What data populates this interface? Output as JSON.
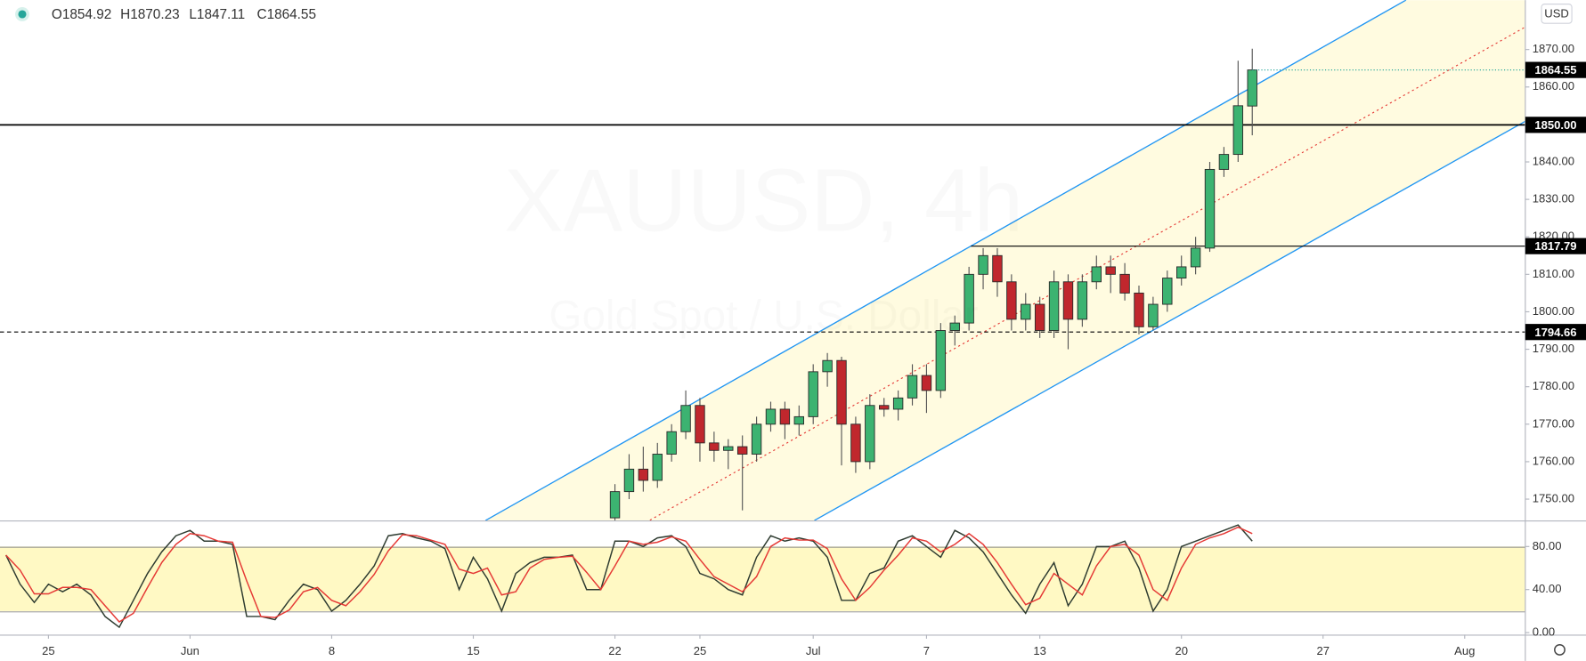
{
  "chart_data": [
    {
      "type": "candlestick",
      "title": "XAUUSD, 4h",
      "subtitle": "Gold Spot / U.S. Dollar",
      "currency": "USD",
      "ohlc_labels": [
        "O1854.92",
        "H1870.23",
        "L1847.11",
        "C1864.55"
      ],
      "x": [
        20.0,
        20.5,
        21.0,
        21.5,
        22.0,
        22.5,
        23.0,
        23.5,
        24.0,
        24.5,
        25.0,
        25.5,
        26.0,
        26.5,
        27.0,
        27.5,
        28.0,
        28.5,
        29.0,
        29.5,
        30.0,
        30.5,
        31.0,
        31.5,
        32.0,
        32.5,
        33.0,
        33.5,
        34.0,
        34.5,
        35.0,
        35.5,
        36.0,
        36.5,
        37.0,
        37.5,
        38.0,
        38.5,
        39.0,
        39.5,
        40.0,
        40.5,
        41.0,
        41.5,
        42.0,
        42.5
      ],
      "open": [
        1745,
        1752,
        1758,
        1755,
        1762,
        1768,
        1775,
        1765,
        1763,
        1764,
        1762,
        1770,
        1774,
        1770,
        1772,
        1784,
        1787,
        1770,
        1760,
        1775,
        1774,
        1777,
        1783,
        1779,
        1795,
        1797,
        1810,
        1815,
        1808,
        1798,
        1802,
        1795,
        1808,
        1798,
        1808,
        1812,
        1810,
        1805,
        1796,
        1802,
        1809,
        1812,
        1817,
        1838,
        1842,
        1854.92
      ],
      "high": [
        1754,
        1762,
        1764,
        1765,
        1770,
        1779,
        1777,
        1768,
        1766,
        1767,
        1772,
        1776,
        1776,
        1775,
        1786,
        1789,
        1788,
        1772,
        1778,
        1777,
        1779,
        1786,
        1786,
        1797,
        1799,
        1812,
        1817,
        1817,
        1810,
        1805,
        1804,
        1811,
        1810,
        1810,
        1815,
        1815,
        1813,
        1807,
        1804,
        1811,
        1815,
        1820,
        1840,
        1844,
        1867,
        1870.23
      ],
      "low": [
        1743,
        1750,
        1752,
        1753,
        1760,
        1766,
        1760,
        1760,
        1758,
        1747,
        1760,
        1768,
        1766,
        1767,
        1770,
        1780,
        1759,
        1757,
        1758,
        1772,
        1771,
        1775,
        1773,
        1777,
        1791,
        1795,
        1806,
        1804,
        1795,
        1795,
        1793,
        1793,
        1790,
        1796,
        1806,
        1805,
        1803,
        1794,
        1795,
        1800,
        1807,
        1810,
        1816,
        1836,
        1840,
        1847.11
      ],
      "close": [
        1752,
        1758,
        1755,
        1762,
        1768,
        1775,
        1765,
        1763,
        1764,
        1762,
        1770,
        1774,
        1770,
        1772,
        1784,
        1787,
        1770,
        1760,
        1775,
        1774,
        1777,
        1783,
        1779,
        1795,
        1797,
        1810,
        1815,
        1808,
        1798,
        1802,
        1795,
        1808,
        1798,
        1808,
        1812,
        1810,
        1805,
        1796,
        1802,
        1809,
        1812,
        1817,
        1838,
        1842,
        1855,
        1864.55
      ],
      "up_color": "#3cb371",
      "down_color": "#c0272d",
      "xlim": [
        -1.71,
        52.14
      ],
      "ylim": [
        1744.3,
        1883.2
      ],
      "yticks": [
        {
          "value": 1750,
          "label": "1750.00"
        },
        {
          "value": 1760,
          "label": "1760.00"
        },
        {
          "value": 1770,
          "label": "1770.00"
        },
        {
          "value": 1780,
          "label": "1780.00"
        },
        {
          "value": 1790,
          "label": "1790.00"
        },
        {
          "value": 1800,
          "label": "1800.00"
        },
        {
          "value": 1810,
          "label": "1810.00"
        },
        {
          "value": 1820,
          "label": "1820.00"
        },
        {
          "value": 1830,
          "label": "1830.00"
        },
        {
          "value": 1840,
          "label": "1840.00"
        },
        {
          "value": 1850,
          "label": "1850.00"
        },
        {
          "value": 1860,
          "label": "1860.00"
        },
        {
          "value": 1870,
          "label": "1870.00"
        }
      ],
      "levels": [
        {
          "value": 1850,
          "label": "1850.00",
          "style": "solid"
        },
        {
          "value": 1817.79,
          "label": "1817.79",
          "style": "solid",
          "from": 32.57
        },
        {
          "value": 1794.66,
          "label": "1794.66",
          "style": "dashed"
        }
      ],
      "last_price": {
        "value": 1864.55,
        "label": "1864.55"
      },
      "channel": {
        "color": "#2196f3",
        "fill": "#fffbe0",
        "mid_color": "#e53935",
        "upper": [
          [
            15.43,
            1744.3
          ],
          [
            47.93,
            1883.2
          ]
        ],
        "lower": [
          [
            27.04,
            1744.3
          ],
          [
            52.14,
            1850.85
          ]
        ]
      }
    },
    {
      "type": "line",
      "x": [
        -1.5,
        -1.0,
        -0.5,
        0.0,
        0.5,
        1.0,
        1.5,
        2.0,
        2.5,
        3.0,
        3.5,
        4.0,
        4.5,
        5.0,
        5.5,
        6.0,
        6.5,
        7.0,
        7.5,
        8.0,
        8.5,
        9.0,
        9.5,
        10.0,
        10.5,
        11.0,
        11.5,
        12.0,
        12.5,
        13.0,
        13.5,
        14.0,
        14.5,
        15.0,
        15.5,
        16.0,
        16.5,
        17.0,
        17.5,
        18.0,
        18.5,
        19.0,
        19.5,
        20.0,
        20.5,
        21.0,
        21.5,
        22.0,
        22.5,
        23.0,
        23.5,
        24.0,
        24.5,
        25.0,
        25.5,
        26.0,
        26.5,
        27.0,
        27.5,
        28.0,
        28.5,
        29.0,
        29.5,
        30.0,
        30.5,
        31.0,
        31.5,
        32.0,
        32.5,
        33.0,
        33.5,
        34.0,
        34.5,
        35.0,
        35.5,
        36.0,
        36.5,
        37.0,
        37.5,
        38.0,
        38.5,
        39.0,
        39.5,
        40.0,
        40.5,
        41.0,
        41.5,
        42.0,
        42.5
      ],
      "series": [
        {
          "color": "#2e3b30",
          "values": [
            72,
            45,
            28,
            45,
            38,
            45,
            35,
            15,
            5,
            30,
            55,
            75,
            90,
            95,
            85,
            85,
            82,
            15,
            15,
            12,
            30,
            45,
            40,
            20,
            30,
            45,
            62,
            90,
            92,
            88,
            85,
            78,
            40,
            70,
            50,
            20,
            55,
            65,
            70,
            70,
            72,
            40,
            40,
            85,
            85,
            80,
            88,
            90,
            80,
            55,
            50,
            40,
            35,
            70,
            90,
            85,
            88,
            85,
            70,
            30,
            30,
            55,
            60,
            85,
            90,
            80,
            70,
            95,
            88,
            75,
            55,
            35,
            18,
            45,
            65,
            25,
            45,
            80,
            80,
            85,
            60,
            20,
            40,
            80,
            85,
            90,
            95,
            100,
            85
          ]
        },
        {
          "color": "#e53935",
          "values": [
            72,
            58,
            36,
            36,
            42,
            42,
            40,
            25,
            10,
            18,
            42,
            65,
            82,
            92,
            90,
            85,
            84,
            48,
            15,
            14,
            21,
            38,
            42,
            30,
            25,
            38,
            54,
            76,
            91,
            90,
            86,
            82,
            59,
            55,
            60,
            35,
            38,
            60,
            68,
            70,
            71,
            56,
            40,
            62,
            85,
            82,
            84,
            89,
            85,
            68,
            52,
            45,
            38,
            52,
            80,
            88,
            86,
            86,
            78,
            50,
            30,
            42,
            58,
            72,
            88,
            85,
            75,
            82,
            92,
            82,
            65,
            45,
            26,
            32,
            55,
            45,
            35,
            62,
            80,
            82,
            72,
            40,
            30,
            60,
            82,
            88,
            92,
            98,
            92
          ]
        }
      ],
      "band": [
        20,
        80
      ],
      "band_color": "#fff9c4",
      "xlim": [
        -1.71,
        52.14
      ],
      "ylim": [
        -1.9,
        104.2
      ],
      "yticks": [
        {
          "value": 0,
          "label": "0.00"
        },
        {
          "value": 40,
          "label": "40.00"
        },
        {
          "value": 80,
          "label": "80.00"
        }
      ],
      "xticks": [
        {
          "value": 0,
          "label": "25"
        },
        {
          "value": 5,
          "label": "Jun"
        },
        {
          "value": 10,
          "label": "8"
        },
        {
          "value": 15,
          "label": "15"
        },
        {
          "value": 20,
          "label": "22"
        },
        {
          "value": 23,
          "label": "25"
        },
        {
          "value": 27,
          "label": "Jul"
        },
        {
          "value": 31,
          "label": "7"
        },
        {
          "value": 35,
          "label": "13"
        },
        {
          "value": 40,
          "label": "20"
        },
        {
          "value": 45,
          "label": "27"
        },
        {
          "value": 50,
          "label": "Aug"
        }
      ]
    }
  ]
}
